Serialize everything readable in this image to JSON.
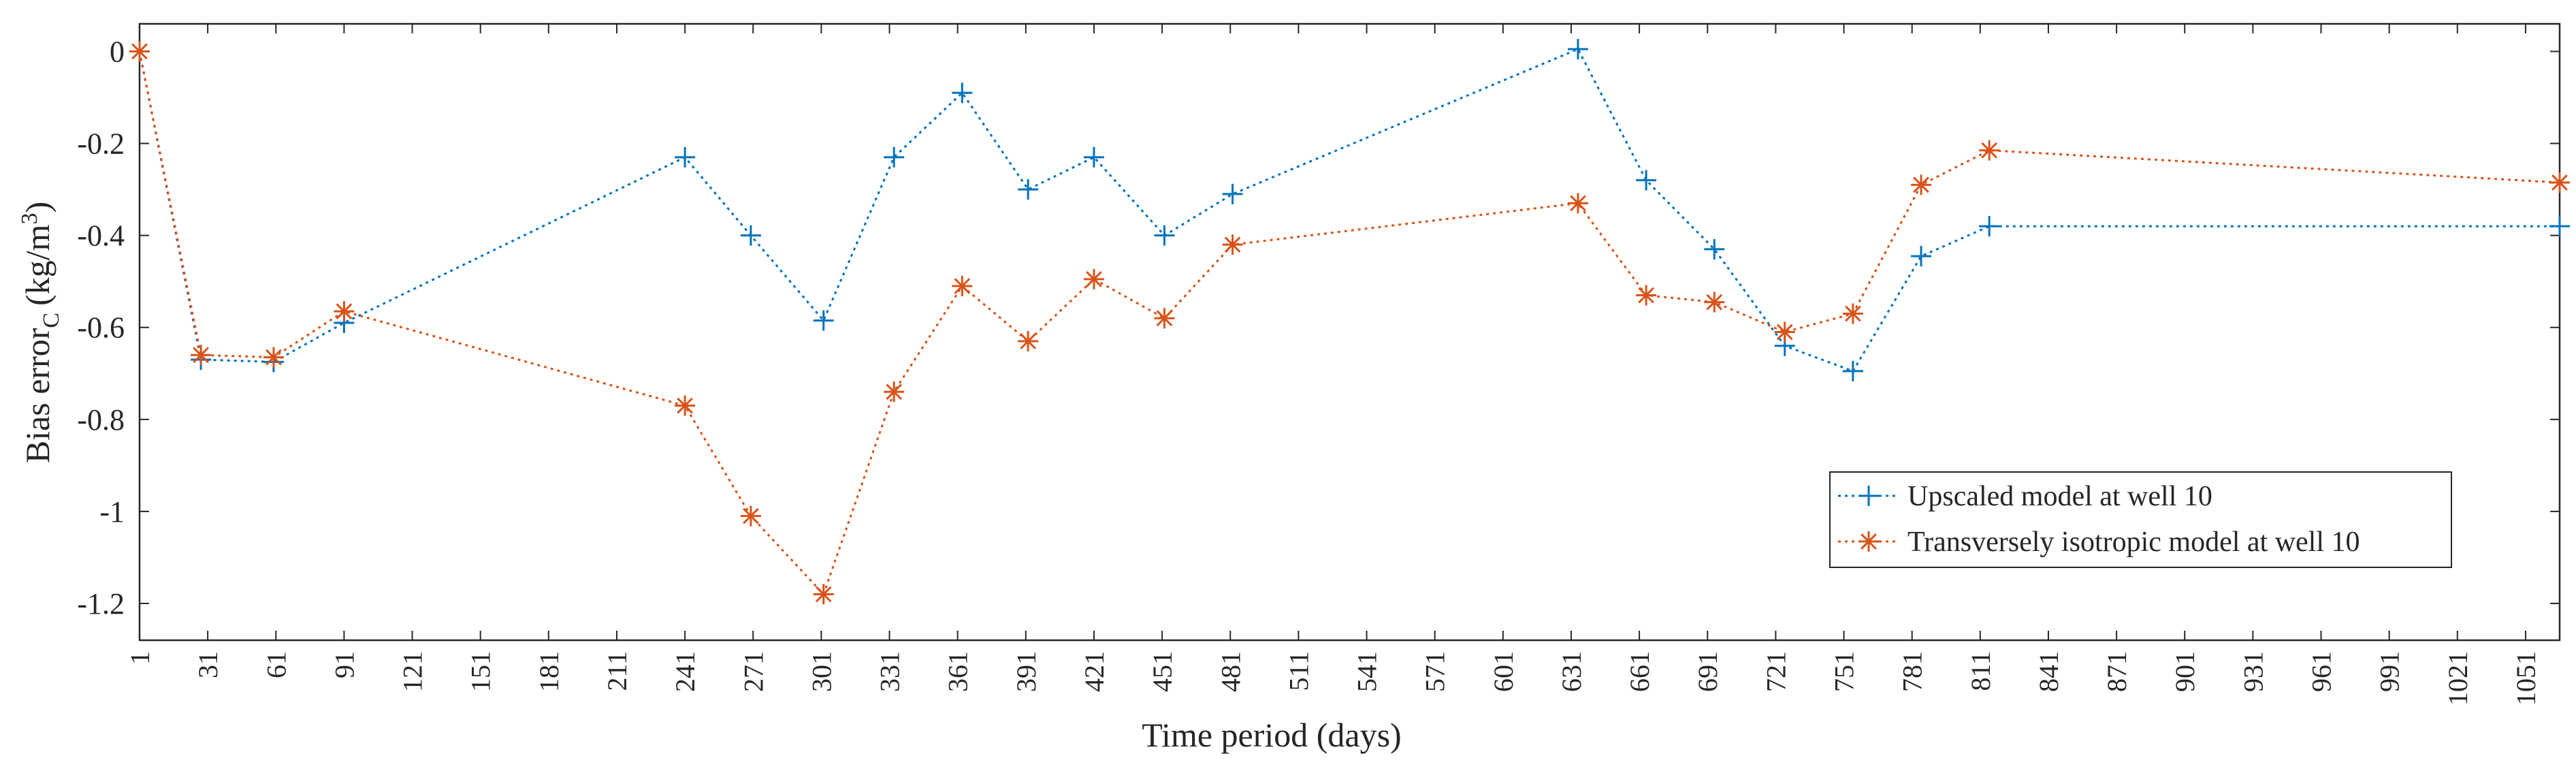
{
  "chart_data": {
    "type": "line",
    "title": "",
    "xlabel": "Time period (days)",
    "ylabel": "Bias error",
    "ylabel_subscript": "C",
    "ylabel_units": "(kg/m",
    "ylabel_units_sup": "3",
    "ylabel_units_close": ")",
    "xlim": [
      1,
      1066
    ],
    "ylim": [
      -1.28,
      0.06
    ],
    "x_ticks": [
      1,
      31,
      61,
      91,
      121,
      151,
      181,
      211,
      241,
      271,
      301,
      331,
      361,
      391,
      421,
      451,
      481,
      511,
      541,
      571,
      601,
      631,
      661,
      691,
      721,
      751,
      781,
      811,
      841,
      871,
      901,
      931,
      961,
      991,
      1021,
      1051
    ],
    "x_tick_labels": [
      "1",
      "31",
      "61",
      "91",
      "121",
      "151",
      "181",
      "211",
      "241",
      "271",
      "301",
      "331",
      "361",
      "391",
      "421",
      "451",
      "481",
      "511",
      "541",
      "571",
      "601",
      "631",
      "661",
      "691",
      "721",
      "751",
      "781",
      "811",
      "841",
      "871",
      "901",
      "931",
      "961",
      "991",
      "1021",
      "1051"
    ],
    "y_ticks": [
      0,
      -0.2,
      -0.4,
      -0.6,
      -0.8,
      -1.0,
      -1.2
    ],
    "y_tick_labels": [
      "0",
      "-0.2",
      "-0.4",
      "-0.6",
      "-0.8",
      "-1",
      "-1.2"
    ],
    "grid": false,
    "legend_position": "lower-right",
    "series": [
      {
        "name": "Upscaled model at well 10",
        "color": "#0072BD",
        "marker": "plus",
        "line_style": "dotted",
        "x": [
          1,
          28,
          60,
          91,
          241,
          270,
          302,
          333,
          363,
          392,
          421,
          452,
          482,
          634,
          664,
          694,
          725,
          755,
          785,
          815,
          1066
        ],
        "y": [
          0,
          -0.67,
          -0.675,
          -0.59,
          -0.23,
          -0.4,
          -0.585,
          -0.23,
          -0.09,
          -0.3,
          -0.23,
          -0.4,
          -0.31,
          0.005,
          -0.28,
          -0.43,
          -0.64,
          -0.695,
          -0.445,
          -0.38,
          -0.38
        ]
      },
      {
        "name": "Transversely isotropic model at well 10",
        "color": "#D95319",
        "marker": "asterisk",
        "line_style": "dotted",
        "x": [
          1,
          28,
          60,
          91,
          241,
          270,
          302,
          333,
          363,
          392,
          421,
          452,
          482,
          634,
          664,
          694,
          725,
          755,
          785,
          815,
          1066
        ],
        "y": [
          0,
          -0.66,
          -0.665,
          -0.565,
          -0.77,
          -1.01,
          -1.18,
          -0.74,
          -0.51,
          -0.63,
          -0.495,
          -0.58,
          -0.42,
          -0.33,
          -0.53,
          -0.545,
          -0.61,
          -0.57,
          -0.29,
          -0.215,
          -0.285
        ]
      }
    ]
  }
}
